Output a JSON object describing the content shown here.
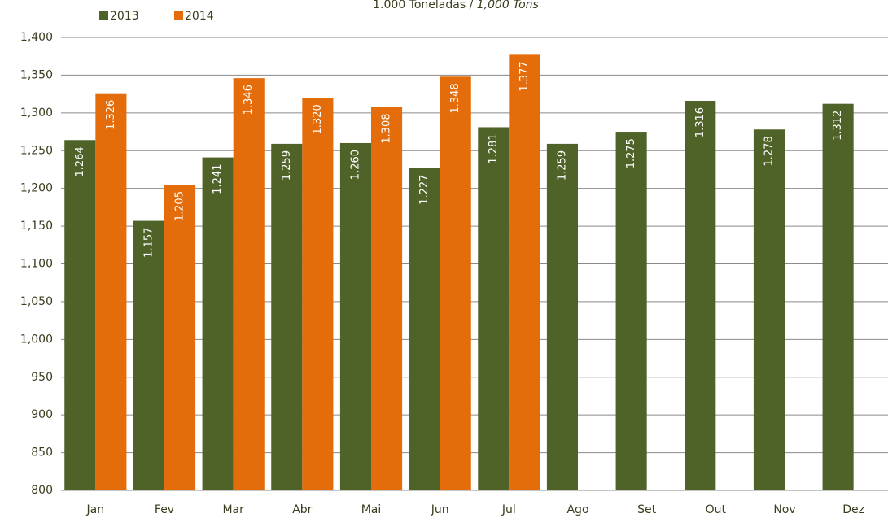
{
  "chart_data": {
    "type": "bar",
    "title": "1.000 Toneladas /",
    "subtitle": "1,000 Tons",
    "categories": [
      "Jan",
      "Fev",
      "Mar",
      "Abr",
      "Mai",
      "Jun",
      "Jul",
      "Ago",
      "Set",
      "Out",
      "Nov",
      "Dez"
    ],
    "series": [
      {
        "name": "2013",
        "color": "#4f6228",
        "values": [
          1264,
          1157,
          1241,
          1259,
          1260,
          1227,
          1281,
          1259,
          1275,
          1316,
          1278,
          1312
        ],
        "value_labels": [
          "1.264",
          "1.157",
          "1.241",
          "1.259",
          "1.260",
          "1.227",
          "1.281",
          "1.259",
          "1.275",
          "1.316",
          "1.278",
          "1.312"
        ]
      },
      {
        "name": "2014",
        "color": "#e46c0a",
        "values": [
          1326,
          1205,
          1346,
          1320,
          1308,
          1348,
          1377,
          null,
          null,
          null,
          null,
          null
        ],
        "value_labels": [
          "1.326",
          "1.205",
          "1.346",
          "1.320",
          "1.308",
          "1.348",
          "1.377",
          null,
          null,
          null,
          null,
          null
        ]
      }
    ],
    "ylim": [
      800,
      1400
    ],
    "yticks": [
      800,
      850,
      900,
      950,
      {
        "value": 1000,
        "label": "1,000"
      },
      {
        "value": 1050,
        "label": "1,050"
      },
      {
        "value": 1100,
        "label": "1,100"
      },
      {
        "value": 1150,
        "label": "1,150"
      },
      {
        "value": 1200,
        "label": "1,200"
      },
      {
        "value": 1250,
        "label": "1,250"
      },
      {
        "value": 1300,
        "label": "1,300"
      },
      {
        "value": 1350,
        "label": "1,350"
      },
      {
        "value": 1400,
        "label": "1,400"
      }
    ],
    "grid": true,
    "legend": "top-left"
  }
}
